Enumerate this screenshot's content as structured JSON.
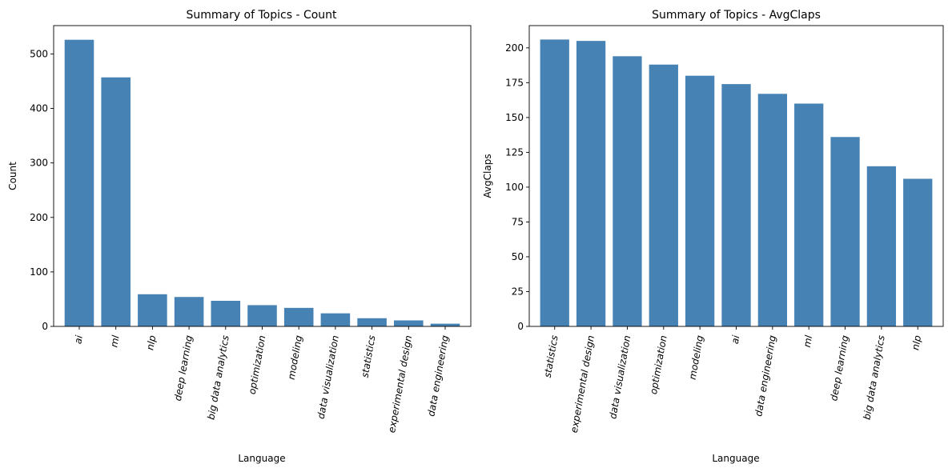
{
  "chart_data": [
    {
      "type": "bar",
      "title": "Summary of Topics - Count",
      "xlabel": "Language",
      "ylabel": "Count",
      "categories": [
        "ai",
        "ml",
        "nlp",
        "deep learning",
        "big data analytics",
        "optimization",
        "modeling",
        "data visualization",
        "statistics",
        "experimental design",
        "data engineering"
      ],
      "values": [
        526,
        457,
        59,
        54,
        47,
        39,
        34,
        24,
        15,
        11,
        5
      ],
      "ylim": [
        0,
        552
      ],
      "yticks": [
        0,
        100,
        200,
        300,
        400,
        500
      ],
      "bar_color": "#4682b4",
      "grid": false,
      "category_label_rotation": "rotated ~80 degrees"
    },
    {
      "type": "bar",
      "title": "Summary of Topics - AvgClaps",
      "xlabel": "Language",
      "ylabel": "AvgClaps",
      "categories": [
        "statistics",
        "experimental design",
        "data visualization",
        "optimization",
        "modeling",
        "ai",
        "data engineering",
        "ml",
        "deep learning",
        "big data analytics",
        "nlp"
      ],
      "values": [
        206,
        205,
        194,
        188,
        180,
        174,
        167,
        160,
        136,
        115,
        106
      ],
      "ylim": [
        0,
        216
      ],
      "yticks": [
        0,
        25,
        50,
        75,
        100,
        125,
        150,
        175,
        200
      ],
      "bar_color": "#4682b4",
      "grid": false,
      "category_label_rotation": "rotated ~80 degrees"
    }
  ]
}
